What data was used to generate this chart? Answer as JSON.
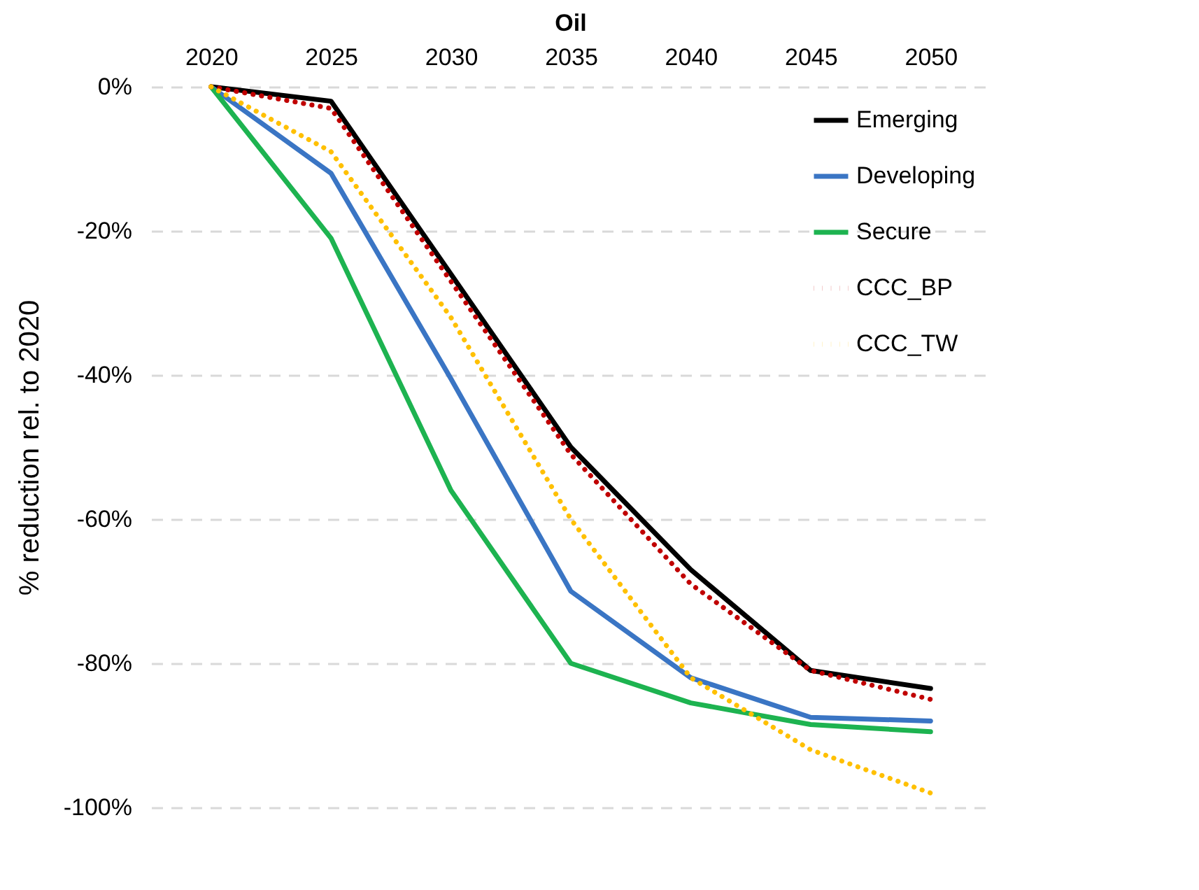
{
  "chart_data": {
    "type": "line",
    "title": "Oil",
    "ylabel": "% reduction rel. to 2020",
    "categories": [
      "2020",
      "2025",
      "2030",
      "2035",
      "2040",
      "2045",
      "2050"
    ],
    "series": [
      {
        "name": "Emerging",
        "color": "#000000",
        "line_style": "solid",
        "values": [
          0,
          -2,
          -26,
          -50,
          -67,
          -81,
          -83.5
        ]
      },
      {
        "name": "Developing",
        "color": "#3a75c4",
        "line_style": "solid",
        "values": [
          0,
          -12,
          -40.5,
          -70,
          -82,
          -87.5,
          -88
        ]
      },
      {
        "name": "Secure",
        "color": "#1db350",
        "line_style": "solid",
        "values": [
          0,
          -21,
          -56,
          -80,
          -85.5,
          -88.5,
          -89.5
        ]
      },
      {
        "name": "CCC_BP",
        "color": "#c00000",
        "line_style": "dotted",
        "values": [
          0,
          -3,
          -27,
          -51,
          -69,
          -81,
          -85
        ]
      },
      {
        "name": "CCC_TW",
        "color": "#ffc000",
        "line_style": "dotted",
        "values": [
          0,
          -9,
          -32,
          -60,
          -82,
          -92,
          -98
        ]
      }
    ],
    "ylim": [
      -100,
      0
    ],
    "yticks": [
      {
        "value": 0,
        "label": "0%"
      },
      {
        "value": -20,
        "label": "-20%"
      },
      {
        "value": -40,
        "label": "-40%"
      },
      {
        "value": -60,
        "label": "-60%"
      },
      {
        "value": -80,
        "label": "-80%"
      },
      {
        "value": -100,
        "label": "-100%"
      }
    ],
    "grid": "y",
    "legend": "right",
    "marker": "none"
  }
}
